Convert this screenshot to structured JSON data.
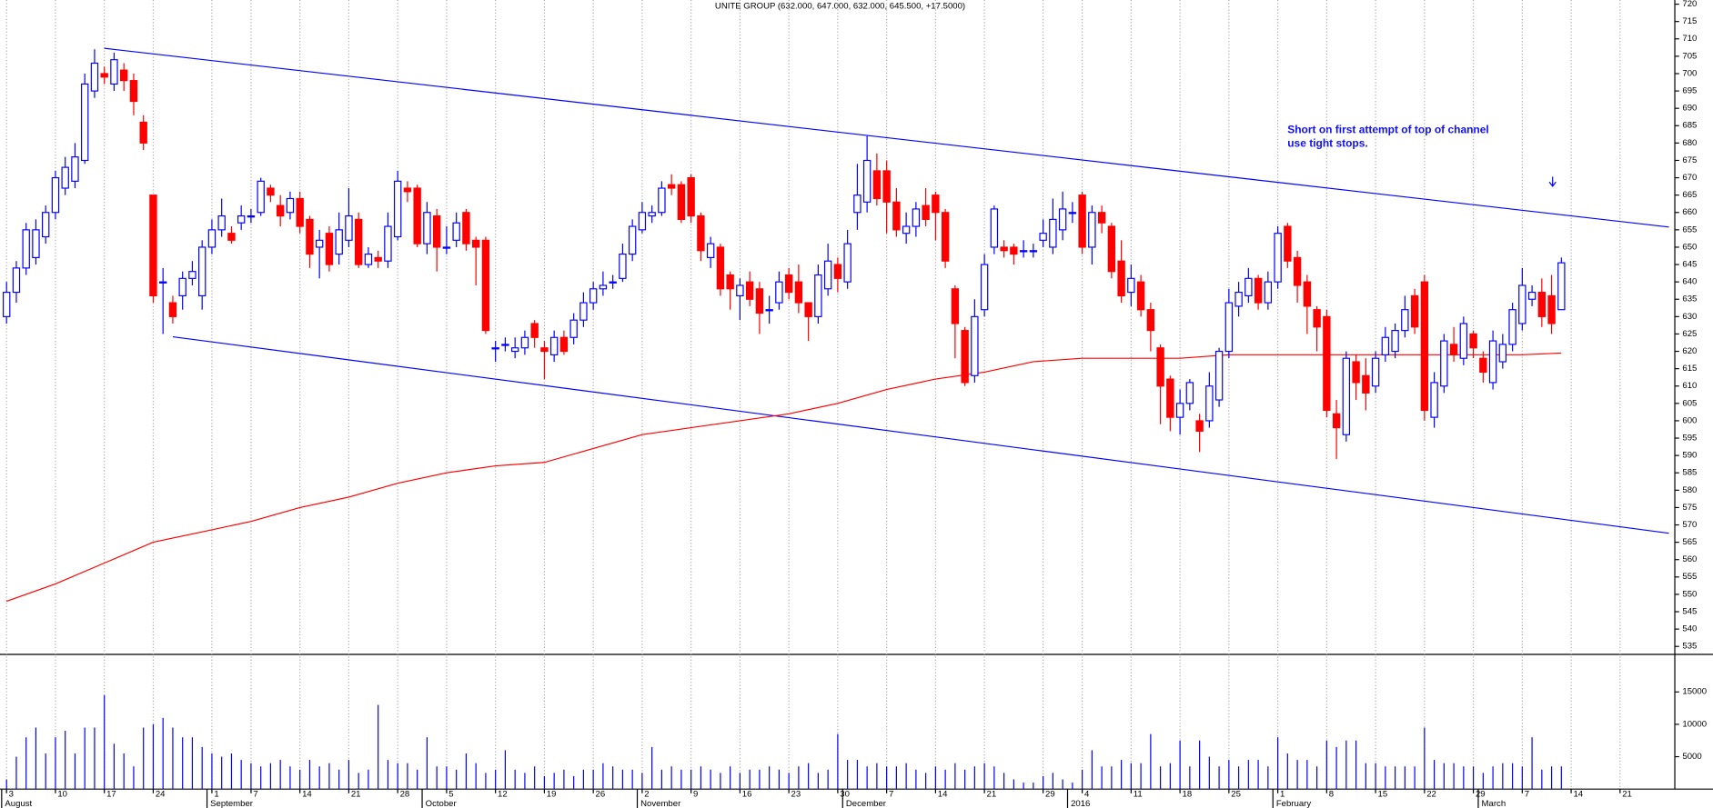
{
  "chart_data": {
    "type": "candlestick",
    "title": "UNITE GROUP (632.000, 647.000, 632.000, 645.500, +17.5000)",
    "annotation": [
      "Short on first attempt of top of channel",
      "use tight stops."
    ],
    "up_color": "#0000ff",
    "down_color": "#ff0000",
    "open": [
      630,
      637,
      644,
      647,
      653,
      660,
      667,
      669,
      675,
      695,
      700,
      697,
      701,
      698,
      686,
      665,
      640,
      634,
      636,
      641,
      636,
      650,
      655,
      654,
      657,
      659,
      660,
      667,
      662,
      660,
      664,
      658,
      650,
      654,
      648,
      652,
      658,
      645,
      647,
      646,
      653,
      667,
      667,
      651,
      659,
      650,
      652,
      660,
      652,
      652,
      621,
      622,
      620,
      621,
      628,
      621,
      619,
      624,
      624,
      629,
      634,
      638,
      640,
      641,
      648,
      655,
      659,
      660,
      668,
      668,
      670,
      659,
      647,
      650,
      642,
      636,
      640,
      638,
      632,
      634,
      642,
      640,
      634,
      630,
      638,
      645,
      640,
      660,
      663,
      672,
      672,
      663,
      654,
      656,
      662,
      665,
      660,
      638,
      626,
      613,
      632,
      650,
      650,
      650,
      649,
      649,
      652,
      650,
      655,
      660,
      665,
      650,
      660,
      656,
      646,
      637,
      640,
      632,
      621,
      612,
      601,
      605,
      600,
      600,
      606,
      620,
      633,
      636,
      641,
      634,
      640,
      656,
      647,
      640,
      632,
      630,
      602,
      596,
      617,
      613,
      610,
      619,
      620,
      626,
      636,
      640,
      601,
      610,
      622,
      618,
      625,
      618,
      611,
      617,
      622,
      628,
      635,
      637,
      636,
      632
    ],
    "high": [
      640,
      646,
      657,
      658,
      662,
      672,
      676,
      680,
      700,
      707,
      702,
      706,
      703,
      700,
      688,
      665,
      644,
      636,
      643,
      646,
      652,
      658,
      664,
      656,
      662,
      661,
      670,
      668,
      665,
      666,
      666,
      659,
      655,
      656,
      660,
      667,
      660,
      650,
      649,
      660,
      672,
      669,
      668,
      663,
      661,
      656,
      660,
      661,
      653,
      653,
      623,
      624,
      624,
      626,
      629,
      623,
      626,
      626,
      631,
      637,
      640,
      643,
      642,
      651,
      658,
      663,
      662,
      669,
      671,
      669,
      671,
      660,
      653,
      651,
      643,
      641,
      643,
      640,
      636,
      643,
      644,
      645,
      634,
      645,
      651,
      647,
      655,
      674,
      682,
      677,
      675,
      667,
      660,
      663,
      667,
      666,
      661,
      639,
      627,
      635,
      648,
      662,
      652,
      651,
      652,
      651,
      658,
      664,
      666,
      663,
      666,
      662,
      662,
      657,
      652,
      645,
      642,
      634,
      622,
      613,
      609,
      612,
      602,
      614,
      621,
      638,
      640,
      644,
      642,
      643,
      656,
      657,
      649,
      642,
      633,
      632,
      606,
      620,
      619,
      618,
      620,
      627,
      628,
      636,
      638,
      642,
      614,
      625,
      627,
      630,
      626,
      620,
      626,
      625,
      634,
      644,
      639,
      641,
      642,
      647
    ],
    "low": [
      628,
      634,
      642,
      645,
      651,
      658,
      665,
      667,
      674,
      693,
      697,
      695,
      695,
      688,
      678,
      634,
      625,
      628,
      632,
      639,
      632,
      648,
      653,
      651,
      655,
      657,
      659,
      663,
      656,
      658,
      654,
      644,
      641,
      643,
      645,
      650,
      644,
      644,
      644,
      644,
      652,
      663,
      650,
      648,
      643,
      648,
      650,
      649,
      639,
      625,
      617,
      620,
      618,
      619,
      621,
      612,
      617,
      619,
      622,
      627,
      632,
      636,
      638,
      640,
      646,
      654,
      657,
      659,
      665,
      657,
      657,
      646,
      644,
      636,
      632,
      629,
      633,
      625,
      628,
      632,
      635,
      631,
      623,
      628,
      636,
      637,
      638,
      655,
      660,
      662,
      654,
      653,
      651,
      653,
      656,
      652,
      644,
      618,
      610,
      611,
      630,
      648,
      647,
      645,
      647,
      647,
      650,
      648,
      652,
      657,
      648,
      645,
      654,
      641,
      634,
      633,
      630,
      620,
      599,
      597,
      596,
      603,
      591,
      598,
      604,
      618,
      630,
      634,
      632,
      632,
      638,
      644,
      634,
      625,
      620,
      601,
      589,
      594,
      606,
      603,
      608,
      617,
      618,
      624,
      625,
      600,
      598,
      608,
      617,
      616,
      618,
      611,
      609,
      615,
      620,
      626,
      633,
      627,
      625,
      632
    ],
    "close": [
      637,
      644,
      655,
      655,
      660,
      670,
      673,
      676,
      697,
      703,
      699,
      704,
      698,
      692,
      680,
      636,
      640,
      630,
      641,
      643,
      650,
      655,
      659,
      652,
      659,
      659,
      669,
      665,
      659,
      664,
      656,
      648,
      652,
      645,
      655,
      659,
      645,
      648,
      646,
      656,
      669,
      666,
      651,
      660,
      650,
      650,
      657,
      651,
      650,
      626,
      621,
      622,
      621,
      624,
      624,
      620,
      624,
      620,
      629,
      634,
      638,
      639,
      640,
      648,
      656,
      660,
      660,
      667,
      667,
      658,
      659,
      649,
      651,
      638,
      638,
      639,
      635,
      631,
      632,
      640,
      637,
      634,
      630,
      642,
      646,
      641,
      651,
      665,
      675,
      664,
      663,
      655,
      656,
      661,
      658,
      660,
      646,
      628,
      611,
      630,
      645,
      661,
      649,
      648,
      649,
      649,
      654,
      658,
      661,
      660,
      650,
      660,
      657,
      643,
      636,
      641,
      632,
      626,
      610,
      601,
      605,
      611,
      597,
      610,
      620,
      634,
      637,
      641,
      634,
      640,
      654,
      646,
      639,
      633,
      627,
      603,
      598,
      618,
      611,
      608,
      618,
      624,
      626,
      632,
      627,
      603,
      611,
      623,
      619,
      628,
      621,
      614,
      623,
      622,
      632,
      639,
      637,
      630,
      628,
      645.5
    ],
    "xlim": [
      -0.67,
      170.6
    ],
    "xticks": [
      {
        "value": 0,
        "label": "3"
      },
      {
        "value": 5,
        "label": "10"
      },
      {
        "value": 10,
        "label": "17"
      },
      {
        "value": 15,
        "label": "24"
      },
      {
        "value": 21,
        "label": "1"
      },
      {
        "value": 25,
        "label": "7"
      },
      {
        "value": 30,
        "label": "14"
      },
      {
        "value": 35,
        "label": "21"
      },
      {
        "value": 40,
        "label": "28"
      },
      {
        "value": 45,
        "label": "5"
      },
      {
        "value": 50,
        "label": "12"
      },
      {
        "value": 55,
        "label": "19"
      },
      {
        "value": 60,
        "label": "26"
      },
      {
        "value": 65,
        "label": "2"
      },
      {
        "value": 70,
        "label": "9"
      },
      {
        "value": 75,
        "label": "16"
      },
      {
        "value": 80,
        "label": "23"
      },
      {
        "value": 85,
        "label": "30"
      },
      {
        "value": 90,
        "label": "7"
      },
      {
        "value": 95,
        "label": "14"
      },
      {
        "value": 100,
        "label": "21"
      },
      {
        "value": 106,
        "label": "29"
      },
      {
        "value": 110,
        "label": "4"
      },
      {
        "value": 115,
        "label": "11"
      },
      {
        "value": 120,
        "label": "18"
      },
      {
        "value": 125,
        "label": "25"
      },
      {
        "value": 130,
        "label": "1"
      },
      {
        "value": 135,
        "label": "8"
      },
      {
        "value": 140,
        "label": "15"
      },
      {
        "value": 145,
        "label": "22"
      },
      {
        "value": 150,
        "label": "29"
      },
      {
        "value": 155,
        "label": "7"
      },
      {
        "value": 160,
        "label": "14"
      },
      {
        "value": 165,
        "label": "21"
      }
    ],
    "months": [
      {
        "value": 0,
        "label": "August"
      },
      {
        "value": 21,
        "label": "September"
      },
      {
        "value": 43,
        "label": "October"
      },
      {
        "value": 65,
        "label": "November"
      },
      {
        "value": 86,
        "label": "December"
      },
      {
        "value": 109,
        "label": "2016"
      },
      {
        "value": 130,
        "label": "February"
      },
      {
        "value": 151,
        "label": "March"
      }
    ],
    "ylim": [
      532.7,
      721.2
    ],
    "yticks": [
      535,
      540,
      545,
      550,
      555,
      560,
      565,
      570,
      575,
      580,
      585,
      590,
      595,
      600,
      605,
      610,
      615,
      620,
      625,
      630,
      635,
      640,
      645,
      650,
      655,
      660,
      665,
      670,
      675,
      680,
      685,
      690,
      695,
      700,
      705,
      710,
      715,
      720
    ],
    "moving_average": {
      "color": "#ff0000",
      "x": [
        0,
        5,
        10,
        15,
        20,
        25,
        30,
        35,
        40,
        45,
        50,
        55,
        60,
        65,
        70,
        75,
        80,
        85,
        90,
        95,
        100,
        105,
        110,
        115,
        120,
        125,
        130,
        135,
        140,
        145,
        150,
        155,
        159
      ],
      "values": [
        548,
        553,
        559,
        565,
        568,
        571,
        575,
        578,
        582,
        585,
        587,
        588,
        592,
        596,
        598,
        600,
        602,
        605,
        609,
        612,
        614,
        617,
        618,
        618,
        618,
        619,
        619,
        619,
        619,
        619,
        619,
        619,
        619.5
      ]
    },
    "trendline_color": "#0000ff",
    "trendlines": [
      {
        "x": [
          10,
          170
        ],
        "values": [
          707.3,
          655.8
        ]
      },
      {
        "x": [
          17,
          170
        ],
        "values": [
          624.2,
          567.6
        ]
      }
    ],
    "volume": {
      "color": "#0000ff",
      "ylim": [
        0,
        20800
      ],
      "yticks": [
        5000,
        10000,
        15000
      ],
      "values": [
        1500,
        5000,
        8000,
        9500,
        5500,
        8000,
        9000,
        5500,
        9500,
        9500,
        14500,
        7000,
        5500,
        3500,
        9500,
        10000,
        11000,
        9500,
        8000,
        8000,
        6500,
        5500,
        5000,
        5500,
        4500,
        4000,
        3500,
        4000,
        4500,
        3500,
        3000,
        4500,
        3500,
        4000,
        3000,
        4500,
        2500,
        3000,
        13000,
        4500,
        4000,
        4000,
        3000,
        8000,
        3500,
        3500,
        3000,
        5500,
        4000,
        2500,
        3000,
        6000,
        3000,
        2500,
        3500,
        2000,
        2500,
        3000,
        2000,
        3000,
        3000,
        4000,
        3500,
        3000,
        3000,
        2500,
        6500,
        3000,
        3500,
        3000,
        3000,
        3500,
        3000,
        2500,
        3500,
        2500,
        3000,
        3000,
        3500,
        3000,
        2500,
        3500,
        4000,
        2500,
        3000,
        8500,
        4500,
        4500,
        3500,
        4000,
        3500,
        3500,
        4000,
        3000,
        2500,
        3500,
        3000,
        4000,
        3000,
        3500,
        4000,
        3500,
        2500,
        1500,
        1000,
        1000,
        2000,
        2500,
        1500,
        1000,
        3000,
        6000,
        3500,
        3500,
        4500,
        4000,
        4000,
        8500,
        3500,
        4000,
        7500,
        3500,
        7500,
        5000,
        3500,
        4500,
        3500,
        4500,
        4500,
        3500,
        8000,
        5500,
        4500,
        4500,
        3500,
        7500,
        6500,
        7500,
        7500,
        4000,
        4000,
        3500,
        3500,
        3500,
        3500,
        9500,
        4500,
        4000,
        4000,
        3500,
        3500,
        2500,
        3500,
        4000,
        4000,
        3500,
        8000,
        3000,
        3500,
        3500
      ]
    }
  }
}
